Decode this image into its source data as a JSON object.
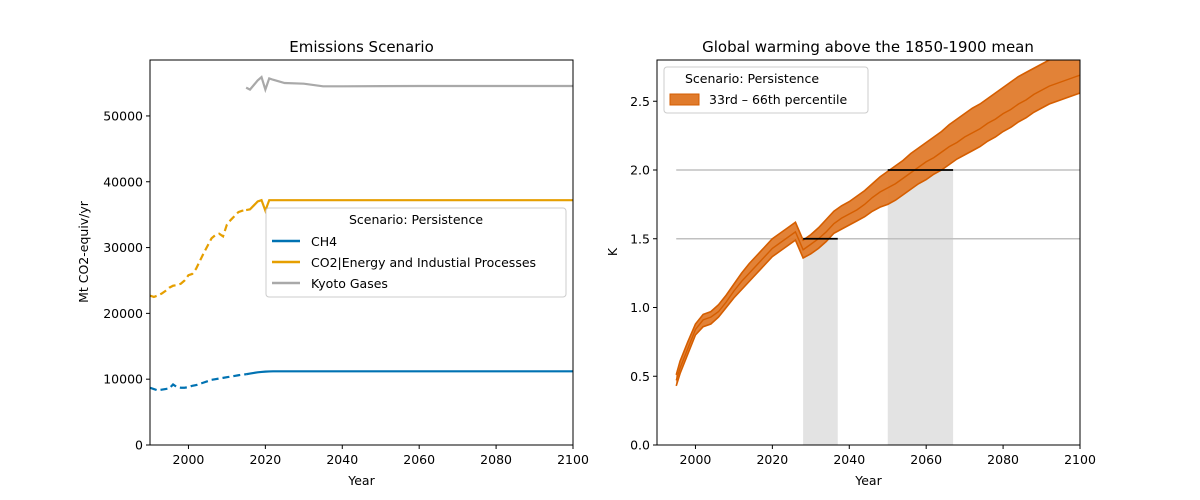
{
  "chart_data": [
    {
      "type": "line",
      "title": "Emissions Scenario",
      "xlabel": "Year",
      "ylabel": "Mt CO2-equiv/yr",
      "xlim": [
        1990,
        2100
      ],
      "ylim": [
        0,
        58500
      ],
      "xticks": [
        2000,
        2020,
        2040,
        2060,
        2080,
        2100
      ],
      "yticks": [
        0,
        10000,
        20000,
        30000,
        40000,
        50000
      ],
      "grid": false,
      "legend": {
        "title": "Scenario: Persistence",
        "placement": "center-right",
        "entries": [
          "CH4",
          "CO2|Energy and Industial Processes",
          "Kyoto Gases"
        ]
      },
      "series": [
        {
          "name": "CH4",
          "color": "#0072b2",
          "historical": {
            "x": [
              1990,
              1991,
              1992,
              1993,
              1994,
              1995,
              1996,
              1997,
              1998,
              1999,
              2000,
              2001,
              2002,
              2003,
              2004,
              2005,
              2006,
              2007,
              2008,
              2009,
              2010,
              2011,
              2012,
              2013,
              2014,
              2015
            ],
            "y": [
              8700,
              8500,
              8300,
              8400,
              8500,
              8600,
              9200,
              8800,
              8700,
              8700,
              8800,
              9000,
              9100,
              9300,
              9500,
              9700,
              9900,
              10000,
              10100,
              10200,
              10300,
              10400,
              10500,
              10600,
              10700,
              10750
            ]
          },
          "projection": {
            "x": [
              2015,
              2016,
              2017,
              2018,
              2019,
              2020,
              2021,
              2022,
              2025,
              2030,
              2040,
              2060,
              2080,
              2100
            ],
            "y": [
              10750,
              10850,
              10950,
              11050,
              11100,
              11150,
              11180,
              11200,
              11200,
              11200,
              11200,
              11200,
              11200,
              11200
            ]
          }
        },
        {
          "name": "CO2|Energy and Industial Processes",
          "color": "#e69f00",
          "historical": {
            "x": [
              1990,
              1991,
              1992,
              1993,
              1994,
              1995,
              1996,
              1997,
              1998,
              1999,
              2000,
              2001,
              2002,
              2003,
              2004,
              2005,
              2006,
              2007,
              2008,
              2009,
              2010,
              2011,
              2012,
              2013,
              2014,
              2015
            ],
            "y": [
              22700,
              22500,
              22700,
              23000,
              23400,
              23900,
              24200,
              24300,
              24500,
              25000,
              25800,
              26000,
              26800,
              28000,
              29200,
              30300,
              31400,
              31900,
              32100,
              31700,
              33500,
              34200,
              34800,
              35400,
              35600,
              35700
            ]
          },
          "projection": {
            "x": [
              2015,
              2016,
              2017,
              2018,
              2019,
              2020,
              2021,
              2022,
              2025,
              2030,
              2040,
              2060,
              2080,
              2100
            ],
            "y": [
              35700,
              35800,
              36400,
              37000,
              37200,
              35600,
              37200,
              37200,
              37200,
              37200,
              37200,
              37200,
              37200,
              37200
            ]
          }
        },
        {
          "name": "Kyoto Gases",
          "color": "#a9a9a9",
          "historical": null,
          "projection": {
            "x": [
              2015,
              2016,
              2017,
              2018,
              2019,
              2020,
              2021,
              2022,
              2025,
              2030,
              2035,
              2040,
              2060,
              2080,
              2100
            ],
            "y": [
              54300,
              54000,
              54700,
              55400,
              55900,
              54000,
              55700,
              55500,
              55000,
              54900,
              54500,
              54500,
              54550,
              54550,
              54550
            ]
          }
        }
      ]
    },
    {
      "type": "area",
      "title": "Global warming above the 1850-1900 mean",
      "xlabel": "Year",
      "ylabel": "K",
      "xlim": [
        1990,
        2100
      ],
      "ylim": [
        0.0,
        2.8
      ],
      "xticks": [
        2000,
        2020,
        2040,
        2060,
        2080,
        2100
      ],
      "yticks": [
        0.0,
        0.5,
        1.0,
        1.5,
        2.0,
        2.5
      ],
      "ytick_labels": [
        "0.0",
        "0.5",
        "1.0",
        "1.5",
        "2.0",
        "2.5"
      ],
      "grid": false,
      "legend": {
        "title": "Scenario: Persistence",
        "placement": "top-left",
        "entries": [
          "33rd – 66th percentile"
        ]
      },
      "band": {
        "color": "#e07b2c",
        "edge_color": "#d55e00",
        "x": [
          1995,
          1996,
          1998,
          2000,
          2002,
          2004,
          2006,
          2008,
          2010,
          2012,
          2014,
          2016,
          2018,
          2020,
          2022,
          2024,
          2026,
          2028,
          2030,
          2032,
          2034,
          2036,
          2038,
          2040,
          2042,
          2044,
          2046,
          2048,
          2050,
          2052,
          2054,
          2056,
          2058,
          2060,
          2062,
          2064,
          2066,
          2068,
          2070,
          2072,
          2074,
          2076,
          2078,
          2080,
          2082,
          2084,
          2086,
          2088,
          2090,
          2092,
          2094,
          2096,
          2098,
          2100
        ],
        "lower": [
          0.43,
          0.52,
          0.66,
          0.8,
          0.86,
          0.88,
          0.93,
          1.0,
          1.07,
          1.13,
          1.19,
          1.25,
          1.31,
          1.37,
          1.41,
          1.45,
          1.49,
          1.36,
          1.39,
          1.43,
          1.48,
          1.54,
          1.57,
          1.6,
          1.63,
          1.66,
          1.7,
          1.73,
          1.75,
          1.78,
          1.82,
          1.86,
          1.9,
          1.93,
          1.97,
          2.0,
          2.04,
          2.08,
          2.11,
          2.14,
          2.17,
          2.21,
          2.24,
          2.28,
          2.31,
          2.35,
          2.38,
          2.42,
          2.45,
          2.48,
          2.5,
          2.52,
          2.54,
          2.56
        ],
        "median": [
          0.47,
          0.56,
          0.7,
          0.84,
          0.91,
          0.93,
          0.97,
          1.04,
          1.12,
          1.19,
          1.25,
          1.31,
          1.37,
          1.43,
          1.47,
          1.51,
          1.55,
          1.42,
          1.46,
          1.5,
          1.55,
          1.61,
          1.65,
          1.68,
          1.71,
          1.75,
          1.8,
          1.84,
          1.87,
          1.9,
          1.94,
          1.98,
          2.02,
          2.06,
          2.09,
          2.13,
          2.17,
          2.2,
          2.24,
          2.27,
          2.3,
          2.34,
          2.37,
          2.41,
          2.44,
          2.48,
          2.51,
          2.55,
          2.58,
          2.61,
          2.63,
          2.65,
          2.67,
          2.69
        ],
        "upper": [
          0.51,
          0.61,
          0.75,
          0.88,
          0.95,
          0.97,
          1.02,
          1.09,
          1.17,
          1.25,
          1.32,
          1.38,
          1.44,
          1.5,
          1.54,
          1.58,
          1.62,
          1.49,
          1.53,
          1.58,
          1.64,
          1.7,
          1.74,
          1.77,
          1.81,
          1.85,
          1.9,
          1.95,
          1.99,
          2.03,
          2.07,
          2.12,
          2.16,
          2.2,
          2.24,
          2.28,
          2.33,
          2.37,
          2.41,
          2.45,
          2.48,
          2.52,
          2.56,
          2.6,
          2.64,
          2.68,
          2.71,
          2.74,
          2.77,
          2.8,
          2.82,
          2.84,
          2.86,
          2.88
        ]
      },
      "threshold_lines": [
        {
          "y": 1.5,
          "x": [
            1995,
            2100
          ],
          "color": "#c0c0c0"
        },
        {
          "y": 2.0,
          "x": [
            1995,
            2100
          ],
          "color": "#c0c0c0"
        }
      ],
      "crossing_spans": [
        {
          "y": 1.5,
          "x": [
            2028,
            2037
          ]
        },
        {
          "y": 2.0,
          "x": [
            2050,
            2067
          ]
        }
      ]
    }
  ]
}
